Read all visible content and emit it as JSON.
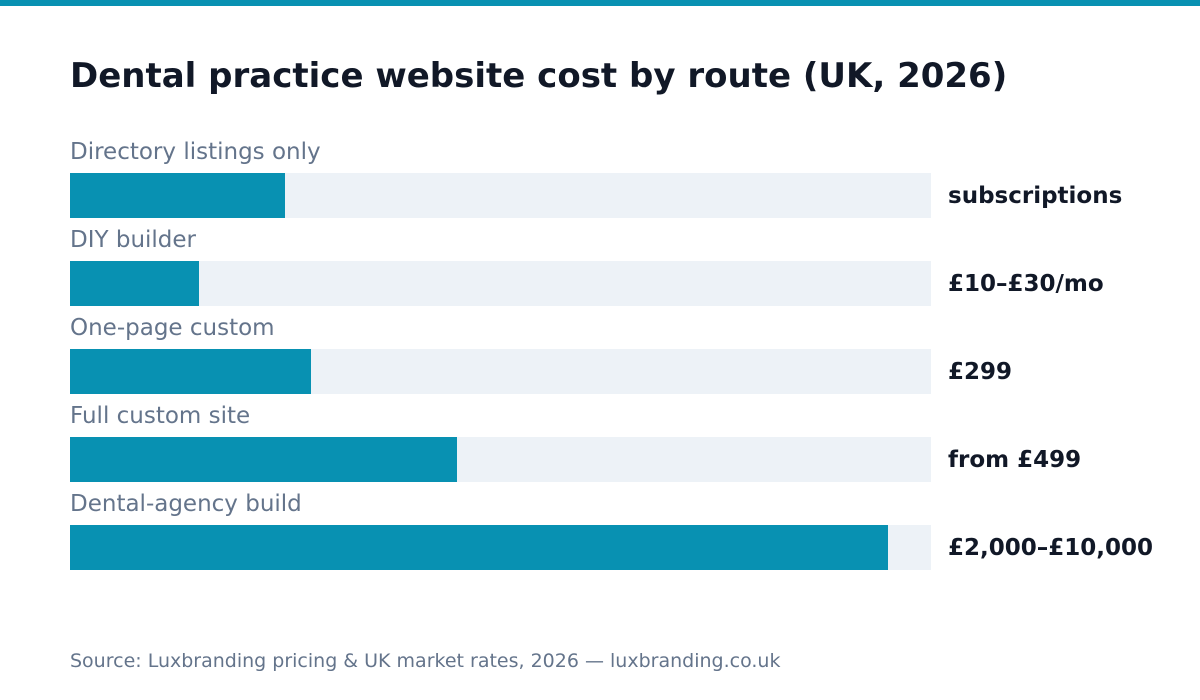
{
  "colors": {
    "accent": "#0891b2",
    "track": "#edf2f7",
    "title": "#111827",
    "muted": "#64748b"
  },
  "chart_data": {
    "type": "bar",
    "orientation": "horizontal",
    "title": "Dental practice website cost by route (UK, 2026)",
    "categories": [
      "Directory listings only",
      "DIY builder",
      "One-page custom",
      "Full custom site",
      "Dental-agency build"
    ],
    "value_labels": [
      "subscriptions",
      "£10–£30/mo",
      "£299",
      "from £499",
      "£2,000–£10,000"
    ],
    "relative_fill": [
      0.25,
      0.15,
      0.28,
      0.45,
      0.95
    ],
    "grid": false,
    "legend": "none",
    "source": "Source: Luxbranding pricing & UK market rates, 2026 — luxbranding.co.uk"
  }
}
